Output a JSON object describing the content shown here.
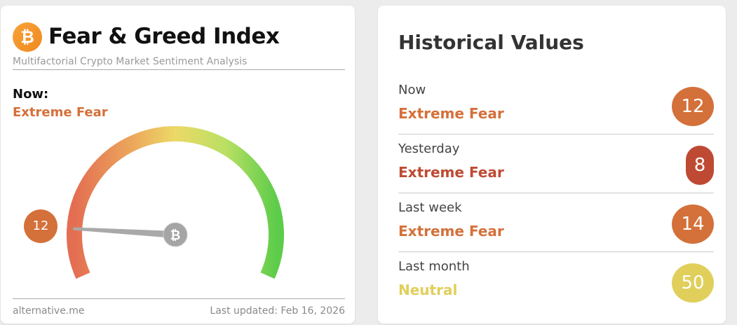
{
  "widget": {
    "title": "Fear & Greed Index",
    "subtitle": "Multifactorial Crypto Market Sentiment Analysis",
    "now_label": "Now:",
    "now_classification": "Extreme Fear",
    "value": "12",
    "source": "alternative.me",
    "last_updated": "Last updated: Feb 16, 2026",
    "logo_icon": "bitcoin-icon"
  },
  "historical": {
    "title": "Historical Values",
    "rows": [
      {
        "label": "Now",
        "classification": "Extreme Fear",
        "value": "12",
        "color": "#d4703a"
      },
      {
        "label": "Yesterday",
        "classification": "Extreme Fear",
        "value": "8",
        "color": "#bf4a33"
      },
      {
        "label": "Last week",
        "classification": "Extreme Fear",
        "value": "14",
        "color": "#d4703a"
      },
      {
        "label": "Last month",
        "classification": "Neutral",
        "value": "50",
        "color": "#e0cf5a"
      }
    ]
  }
}
